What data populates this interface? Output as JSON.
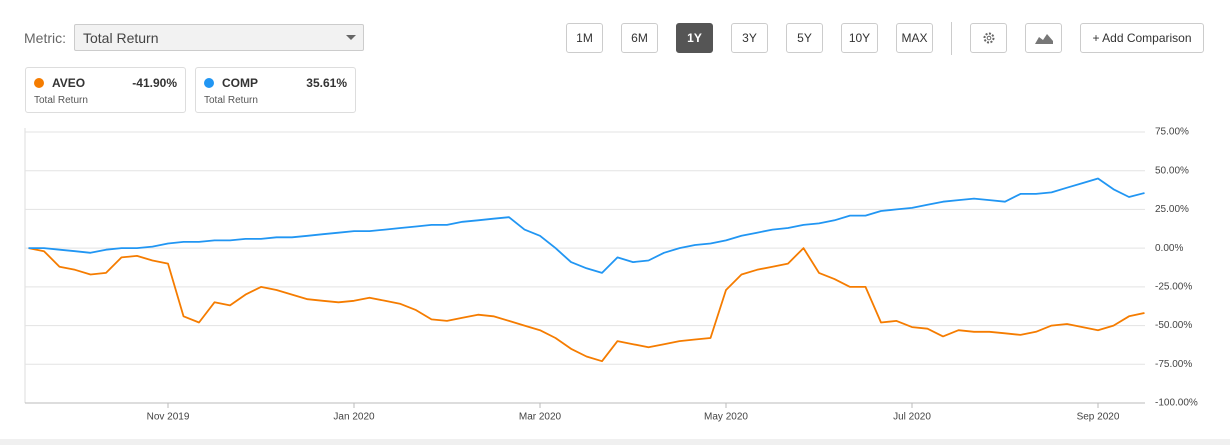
{
  "toolbar": {
    "metric_label": "Metric:",
    "metric": "Total Return",
    "ranges": [
      "1M",
      "6M",
      "1Y",
      "3Y",
      "5Y",
      "10Y",
      "MAX"
    ],
    "active_range": "1Y",
    "add_button": "+ Add Comparison"
  },
  "legend": [
    {
      "name": "AVEO",
      "value": "-41.90%",
      "metric": "Total Return"
    },
    {
      "name": "COMP",
      "value": "35.61%",
      "metric": "Total Return"
    }
  ],
  "chart_data": {
    "type": "line",
    "categories": [
      null,
      null,
      null,
      null,
      null,
      null,
      null,
      null,
      null,
      "Nov 2019",
      null,
      null,
      null,
      null,
      null,
      null,
      null,
      null,
      null,
      null,
      null,
      "Jan 2020",
      null,
      null,
      null,
      null,
      null,
      null,
      null,
      null,
      null,
      null,
      null,
      "Mar 2020",
      null,
      null,
      null,
      null,
      null,
      null,
      null,
      null,
      null,
      null,
      null,
      "May 2020",
      null,
      null,
      null,
      null,
      null,
      null,
      null,
      null,
      null,
      null,
      null,
      "Jul 2020",
      null,
      null,
      null,
      null,
      null,
      null,
      null,
      null,
      null,
      null,
      null,
      "Sep 2020",
      null,
      null,
      null
    ],
    "series": [
      {
        "name": "AVEO",
        "color": "#f57c00",
        "values": [
          0,
          -2,
          -12,
          -14,
          -17,
          -16,
          -6,
          -5,
          -8,
          -10,
          -44,
          -48,
          -35,
          -37,
          -30,
          -25,
          -27,
          -30,
          -33,
          -34,
          -35,
          -34,
          -32,
          -34,
          -36,
          -40,
          -46,
          -47,
          -45,
          -43,
          -44,
          -47,
          -50,
          -53,
          -58,
          -65,
          -70,
          -73,
          -60,
          -62,
          -64,
          -62,
          -60,
          -59,
          -58,
          -27,
          -17,
          -14,
          -12,
          -10,
          0,
          -16,
          -20,
          -25,
          -25,
          -48,
          -47,
          -51,
          -52,
          -57,
          -53,
          -54,
          -54,
          -55,
          -56,
          -54,
          -50,
          -49,
          -51,
          -53,
          -50,
          -44,
          -41.9
        ]
      },
      {
        "name": "COMP",
        "color": "#2196f3",
        "values": [
          0,
          0,
          -1,
          -2,
          -3,
          -1,
          0,
          0,
          1,
          3,
          4,
          4,
          5,
          5,
          6,
          6,
          7,
          7,
          8,
          9,
          10,
          11,
          11,
          12,
          13,
          14,
          15,
          15,
          17,
          18,
          19,
          20,
          12,
          8,
          0,
          -9,
          -13,
          -16,
          -6,
          -9,
          -8,
          -3,
          0,
          2,
          3,
          5,
          8,
          10,
          12,
          13,
          15,
          16,
          18,
          21,
          21,
          24,
          25,
          26,
          28,
          30,
          31,
          32,
          31,
          30,
          35,
          35,
          36,
          39,
          42,
          45,
          38,
          33,
          35.61
        ]
      }
    ],
    "ylim": [
      -100,
      75
    ],
    "yticks": [
      {
        "value": 75,
        "label": "75.00%"
      },
      {
        "value": 50,
        "label": "50.00%"
      },
      {
        "value": 25,
        "label": "25.00%"
      },
      {
        "value": 0,
        "label": "0.00%"
      },
      {
        "value": -25,
        "label": "-25.00%"
      },
      {
        "value": -50,
        "label": "-50.00%"
      },
      {
        "value": -75,
        "label": "-75.00%"
      },
      {
        "value": -100,
        "label": "-100.00%"
      }
    ],
    "grid": true
  }
}
